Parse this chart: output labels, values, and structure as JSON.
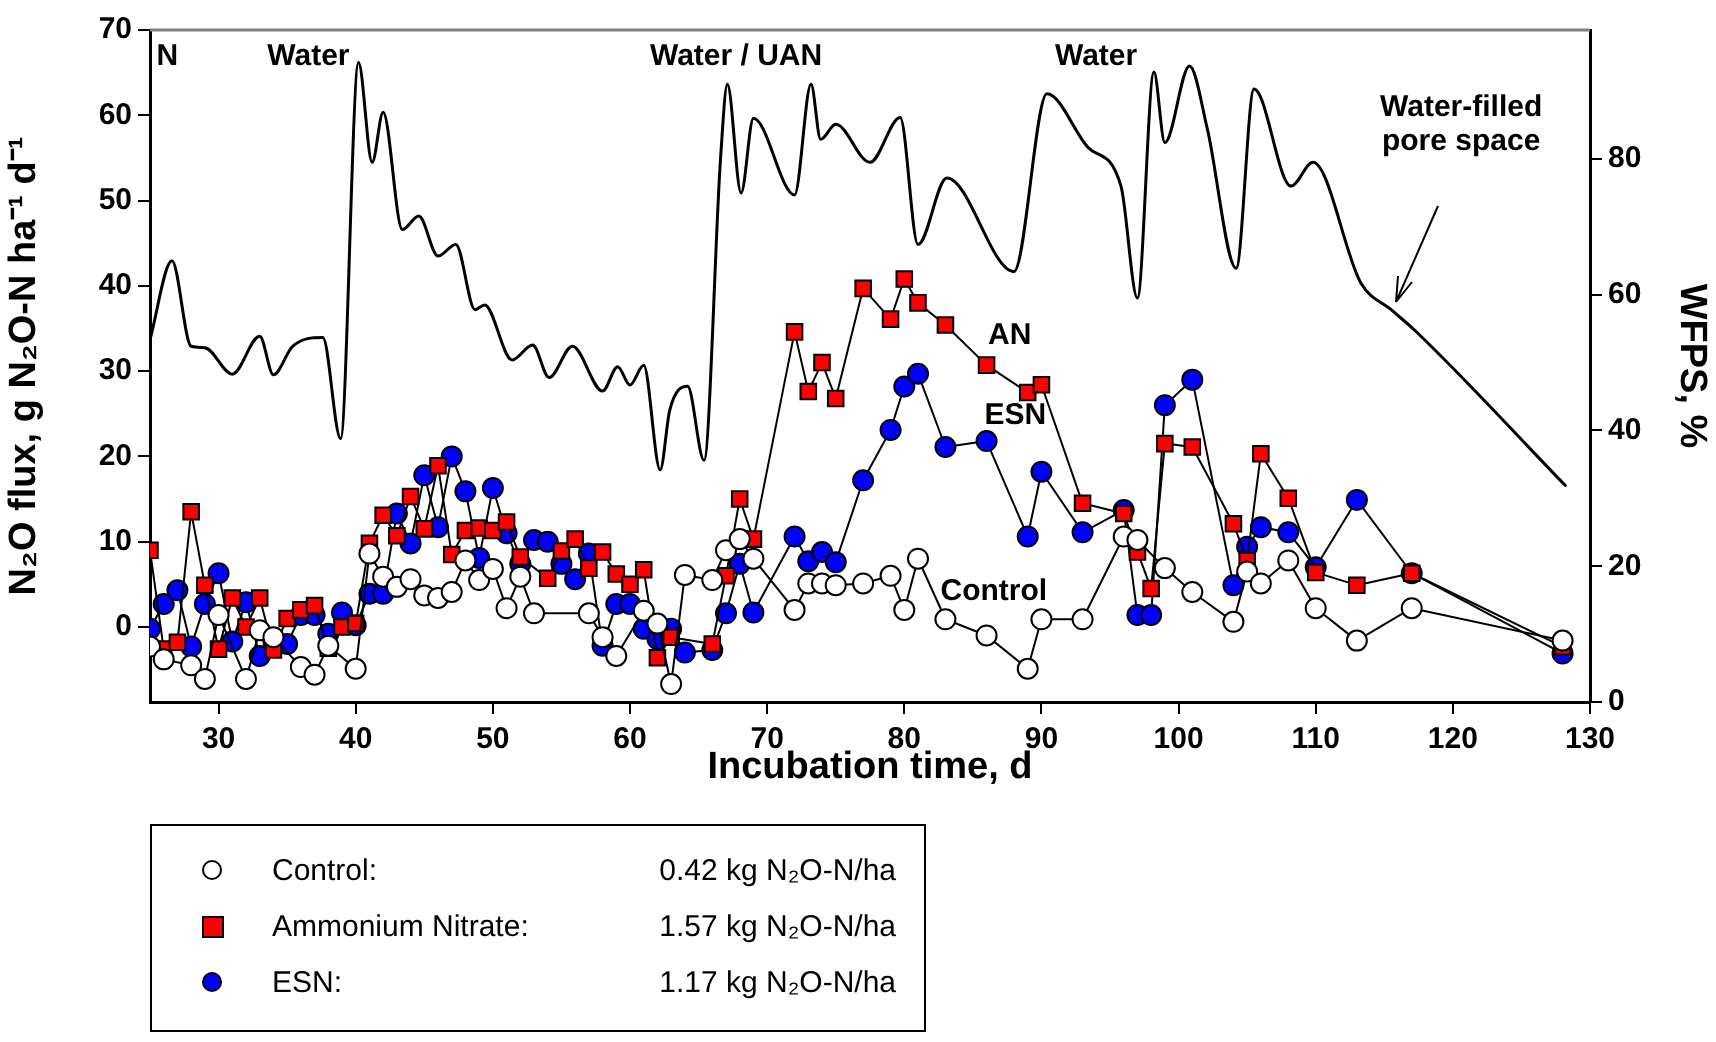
{
  "chart_data": {
    "type": "line",
    "xlabel": "Incubation time, d",
    "ylabel": "N₂O flux, g N₂O-N ha⁻¹ d⁻¹",
    "y2label": "WFPS, %",
    "xlim": [
      25,
      130
    ],
    "xticks": [
      30,
      40,
      50,
      60,
      70,
      80,
      90,
      100,
      110,
      120,
      130
    ],
    "ylim": [
      -8.8,
      70
    ],
    "yticks": [
      0,
      10,
      20,
      30,
      40,
      50,
      60,
      70
    ],
    "y2lim": [
      0,
      99
    ],
    "y2ticks": [
      0,
      20,
      40,
      60,
      80
    ],
    "grid": false,
    "legend": "bottom left",
    "line_style": "solid",
    "series": [
      {
        "name": "Control:",
        "color": "#ffffff",
        "marker": "circle",
        "x": [
          25,
          26,
          28,
          29,
          30,
          32,
          33,
          34,
          36,
          37,
          38,
          40,
          41,
          42,
          43,
          44,
          45,
          46,
          47,
          48,
          49,
          50,
          51,
          52,
          53,
          57,
          58,
          59,
          61,
          62,
          63,
          64,
          66,
          67,
          68,
          69,
          72,
          73,
          74,
          75,
          77,
          79,
          80,
          81,
          83,
          86,
          89,
          90,
          93,
          96,
          97,
          99,
          101,
          104,
          105,
          106,
          108,
          110,
          113,
          117,
          128
        ],
        "values": [
          -2.3,
          -3.8,
          -4.5,
          -6.1,
          1.4,
          -6.1,
          -0.4,
          -1.2,
          -4.7,
          -5.6,
          -2.2,
          -4.9,
          8.6,
          5.9,
          4.7,
          5.6,
          3.7,
          3.4,
          4.1,
          7.8,
          5.5,
          6.8,
          2.2,
          5.9,
          1.6,
          1.6,
          -1.2,
          -3.4,
          1.9,
          0.4,
          -6.7,
          6.1,
          5.5,
          9,
          10.3,
          8,
          2,
          5.1,
          5.1,
          4.9,
          5.1,
          6,
          2,
          8,
          0.9,
          -1,
          -4.9,
          0.9,
          0.9,
          10.6,
          10.2,
          6.9,
          4.1,
          0.6,
          6.5,
          5.1,
          7.8,
          2.2,
          -1.6,
          2.2,
          -1.6
        ]
      },
      {
        "name": "Ammonium Nitrate:",
        "color": "#ff0000",
        "marker": "square",
        "x": [
          25,
          26,
          27,
          28,
          29,
          30,
          31,
          32,
          33,
          34,
          35,
          36,
          37,
          38,
          39,
          40,
          41,
          42,
          43,
          44,
          45,
          46,
          47,
          48,
          49,
          50,
          51,
          52,
          54,
          55,
          56,
          57,
          58,
          59,
          60,
          61,
          62,
          63,
          66,
          67,
          68,
          69,
          72,
          73,
          74,
          75,
          77,
          79,
          80,
          81,
          83,
          86,
          89,
          90,
          93,
          96,
          97,
          98,
          99,
          101,
          104,
          105,
          106,
          108,
          110,
          113,
          117,
          128
        ],
        "values": [
          9,
          -2.6,
          -1.8,
          13.5,
          4.9,
          -2.6,
          3.4,
          0,
          3.4,
          -2.7,
          1,
          2,
          2.5,
          -2.5,
          0,
          0.4,
          9.8,
          13.1,
          10.7,
          15.3,
          11.5,
          18.9,
          8.5,
          11.3,
          11.6,
          11.3,
          12.3,
          8.2,
          5.7,
          8.9,
          10.3,
          6.9,
          8.8,
          6.2,
          5,
          6.7,
          -3.6,
          -1.2,
          -2,
          6,
          15,
          10.3,
          34.6,
          27.6,
          31,
          26.8,
          39.7,
          36.1,
          40.8,
          38,
          35.4,
          30.7,
          27.5,
          28.4,
          14.5,
          13.3,
          8.8,
          4.5,
          21.5,
          21.1,
          12.1,
          7.8,
          20.3,
          15.1,
          6.4,
          4.9,
          6.3,
          -2.3
        ]
      },
      {
        "name": "ESN:",
        "color": "#0000ff",
        "marker": "circle",
        "x": [
          25,
          26,
          27,
          28,
          29,
          30,
          31,
          32,
          33,
          34,
          35,
          36,
          37,
          38,
          39,
          40,
          41,
          42,
          43,
          44,
          45,
          46,
          47,
          48,
          49,
          50,
          51,
          52,
          53,
          54,
          55,
          56,
          57,
          58,
          59,
          60,
          61,
          62,
          63,
          64,
          66,
          67,
          68,
          69,
          72,
          73,
          74,
          75,
          77,
          79,
          80,
          81,
          83,
          86,
          89,
          90,
          93,
          96,
          97,
          98,
          99,
          101,
          104,
          105,
          106,
          108,
          110,
          113,
          117,
          128
        ],
        "values": [
          -0.2,
          2.7,
          4.3,
          -2.3,
          2.7,
          6.3,
          -1.7,
          2.9,
          -3.4,
          -1.7,
          -2,
          1.4,
          1.4,
          -0.8,
          1.7,
          0.2,
          3.9,
          3.9,
          13.3,
          9.8,
          17.8,
          11.7,
          20,
          15.9,
          8.1,
          16.3,
          11,
          7.4,
          10.2,
          10,
          7.4,
          5.6,
          8.6,
          -2.2,
          2.7,
          2.7,
          -0.2,
          -1.4,
          -0.2,
          -3,
          -2.7,
          1.6,
          7.4,
          1.7,
          10.6,
          7.7,
          8.8,
          7.6,
          17.2,
          23.1,
          28.2,
          29.7,
          21.1,
          21.8,
          10.6,
          18.2,
          11.1,
          13.7,
          1.4,
          1.4,
          26,
          29,
          4.9,
          9.4,
          11.7,
          11.1,
          7,
          14.9,
          6.3,
          -3.1
        ]
      },
      {
        "name": "Water-filled pore space",
        "color": "#000000",
        "marker": "none",
        "axis": "y2",
        "x": [
          25,
          26.6,
          28,
          29,
          31,
          33,
          34,
          35.4,
          37.6,
          38.9,
          40.2,
          41.2,
          42,
          43.4,
          44.6,
          46,
          47.3,
          48.7,
          49.4,
          51.4,
          52.9,
          54.1,
          55.8,
          58,
          59.1,
          60,
          61,
          62.2,
          62.9,
          64.2,
          65.4,
          66.6,
          67.1,
          68.1,
          69,
          72,
          73.2,
          73.9,
          75,
          77.5,
          79.7,
          81,
          83.1,
          88,
          90.4,
          93.4,
          95.8,
          97,
          98.2,
          99,
          100.8,
          102.1,
          104.2,
          105.5,
          108.2,
          109.8,
          113.3,
          115.5,
          117.2,
          128.2
        ],
        "values": [
          53.4,
          65,
          52.4,
          52.2,
          48.3,
          53.9,
          48.2,
          52.4,
          53.7,
          38.8,
          94.2,
          79.5,
          86.9,
          69.6,
          71.6,
          65.7,
          67.4,
          57.8,
          58.5,
          50.4,
          52.6,
          47.8,
          52.4,
          45.8,
          49.4,
          46.7,
          49.6,
          34.2,
          43,
          46.5,
          35.6,
          80,
          91,
          75,
          86,
          74.7,
          91,
          82.9,
          85.1,
          79.5,
          86.1,
          67.4,
          77.2,
          63.4,
          89.6,
          81.7,
          76,
          59.5,
          92.8,
          82.4,
          93.7,
          84.4,
          63.9,
          90.3,
          76,
          79.5,
          61.7,
          57.8,
          54.8,
          31.9
        ]
      }
    ],
    "annotations": [
      "N",
      "Water",
      "Water / UAN",
      "Water",
      "AN",
      "ESN",
      "Control",
      "0.42 kg N₂O-N/ha",
      "1.57 kg N₂O-N/ha",
      "1.17 kg N₂O-N/ha"
    ]
  }
}
